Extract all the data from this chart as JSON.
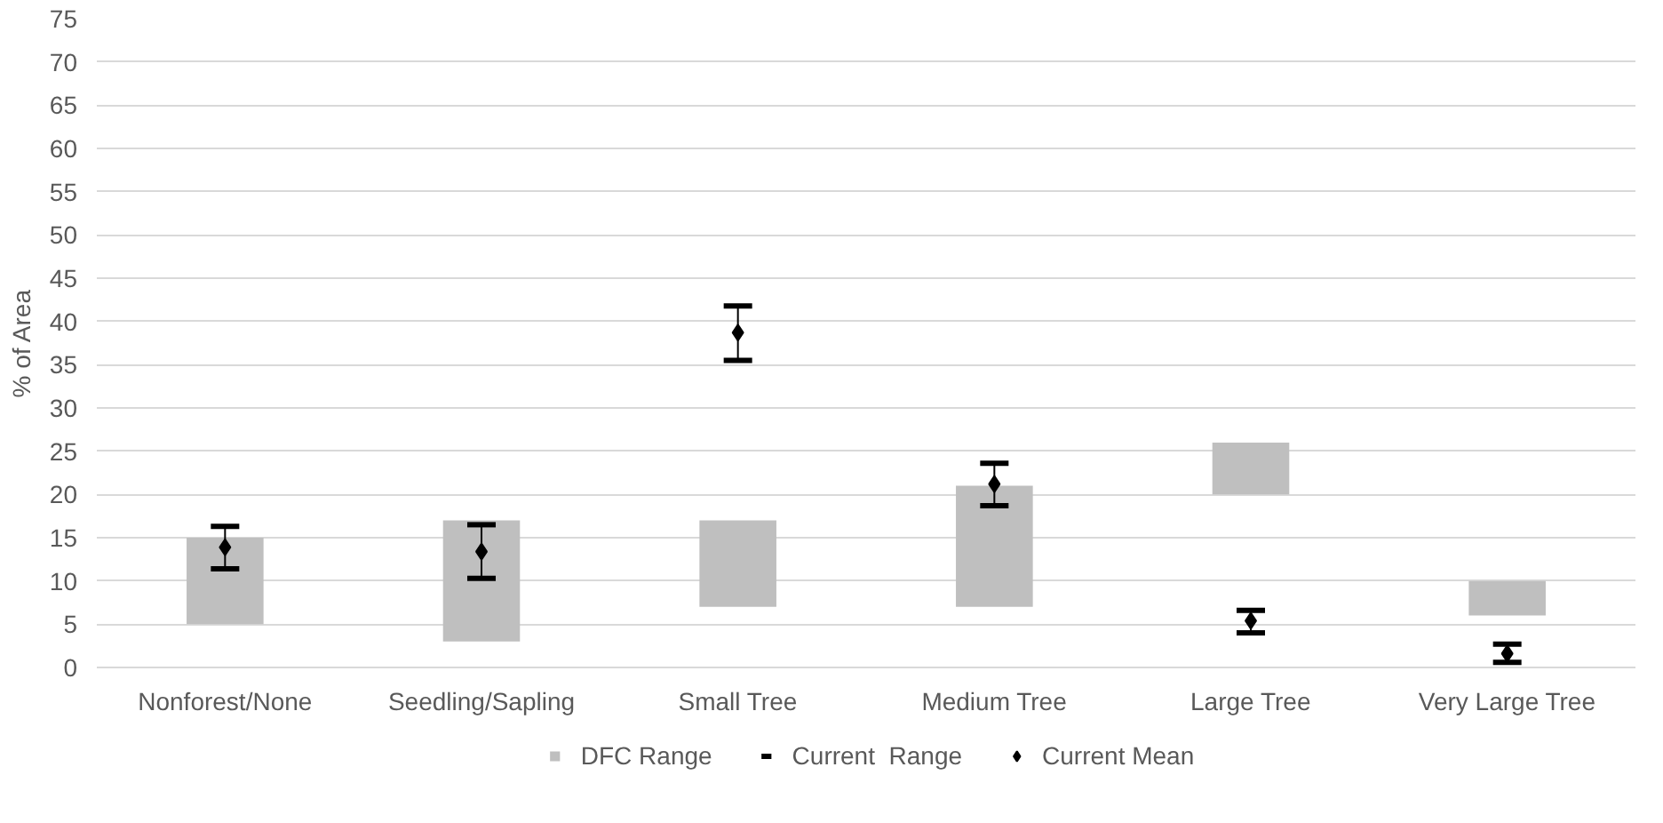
{
  "chart_data": {
    "type": "bar",
    "ylabel": "% of Area",
    "categories": [
      "Nonforest/None",
      "Seedling/Sapling",
      "Small Tree",
      "Medium Tree",
      "Large Tree",
      "Very Large Tree"
    ],
    "series": [
      {
        "name": "DFC Range",
        "color": "#bfbfbf",
        "base": [
          5,
          3,
          7,
          7,
          20,
          6
        ],
        "values": [
          10,
          14,
          10,
          14,
          6,
          4
        ]
      },
      {
        "name": "Current  Range",
        "type": "scatter",
        "marker": "none",
        "color": "#000000",
        "values": [
          null,
          null,
          null,
          null,
          null,
          null
        ]
      },
      {
        "name": "Current Mean",
        "type": "scatter",
        "marker": "diamond",
        "color": "#000000",
        "values": [
          13.9,
          13.4,
          38.7,
          21.2,
          5.4,
          1.6
        ],
        "errors": [
          [
            11.4,
            16.3
          ],
          [
            10.3,
            16.5
          ],
          [
            35.5,
            41.8
          ],
          [
            18.7,
            23.6
          ],
          [
            4.0,
            6.6
          ],
          [
            0.6,
            2.7
          ]
        ]
      }
    ],
    "ylim": [
      0,
      75
    ],
    "yticks": [
      0,
      5,
      10,
      15,
      20,
      25,
      30,
      35,
      40,
      45,
      50,
      55,
      60,
      65,
      70,
      75
    ],
    "grid": "y",
    "legend": "bottom"
  }
}
